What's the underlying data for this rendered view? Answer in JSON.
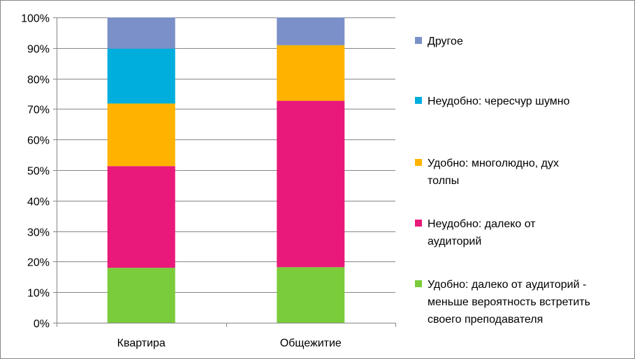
{
  "chart_data": {
    "type": "bar",
    "stacked": true,
    "percent_stacked": true,
    "categories": [
      "Квартира",
      "Общежитие"
    ],
    "series": [
      {
        "name": "Удобно: далеко от аудиторий - меньше вероятность встретить своего преподавателя",
        "legend_lines": [
          "Удобно: далеко от аудиторий -",
          "меньше вероятность встретить",
          "своего преподавателя"
        ],
        "color": "#7ACC3A",
        "values": [
          18,
          18.2
        ]
      },
      {
        "name": "Неудобно: далеко от аудиторий",
        "legend_lines": [
          "Неудобно: далеко от",
          "аудиторий"
        ],
        "color": "#E8197A",
        "values": [
          33.3,
          54.5
        ]
      },
      {
        "name": "Удобно: многолюдно, дух толпы",
        "legend_lines": [
          "Удобно: многолюдно, дух",
          "толпы"
        ],
        "color": "#FFB300",
        "values": [
          20.5,
          18.2
        ]
      },
      {
        "name": "Неудобно: чересчур шумно",
        "legend_lines": [
          "Неудобно: чересчур шумно"
        ],
        "color": "#00AEDD",
        "values": [
          18,
          0
        ]
      },
      {
        "name": "Другое",
        "legend_lines": [
          "Другое"
        ],
        "color": "#7B90C8",
        "values": [
          10.2,
          9.1
        ]
      }
    ],
    "yticks": [
      "0%",
      "10%",
      "20%",
      "30%",
      "40%",
      "50%",
      "60%",
      "70%",
      "80%",
      "90%",
      "100%"
    ],
    "ylim": [
      0,
      100
    ],
    "grid": true,
    "legend_position": "right",
    "title": "",
    "xlabel": "",
    "ylabel": ""
  }
}
